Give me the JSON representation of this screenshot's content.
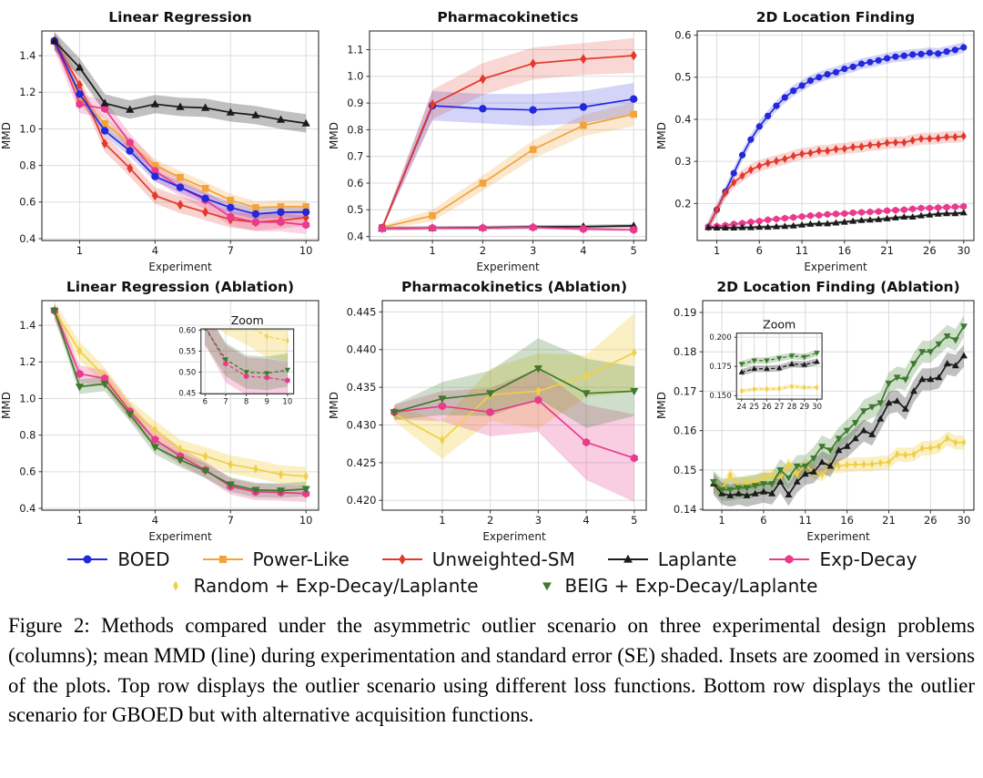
{
  "figure": {
    "caption": "Figure 2: Methods compared under the asymmetric outlier scenario on three experimental design problems (columns); mean MMD (line) during experimentation and standard error (SE) shaded. Insets are zoomed in versions of the plots. Top row displays the outlier scenario using different loss functions. Bottom row displays the outlier scenario for GBOED but with alternative acquisition functions."
  },
  "colors": {
    "boed_blue": "#2328DC",
    "power_like_orange": "#F2A33C",
    "unweighted_sm_red": "#E3382B",
    "laplante_black": "#1B1B1B",
    "exp_decay_pink": "#E93A8D",
    "random_yellow": "#F0CF45",
    "beig_green": "#3C7A2D"
  },
  "legend": {
    "rows": [
      [
        {
          "label": "BOED",
          "color": "#2328DC",
          "marker": "circle",
          "line": true
        },
        {
          "label": "Power-Like",
          "color": "#F2A33C",
          "marker": "square",
          "line": true
        },
        {
          "label": "Unweighted-SM",
          "color": "#E3382B",
          "marker": "diamond",
          "line": true
        },
        {
          "label": "Laplante",
          "color": "#1B1B1B",
          "marker": "triangle-up",
          "line": true
        },
        {
          "label": "Exp-Decay",
          "color": "#E93A8D",
          "marker": "hexagon",
          "line": true
        }
      ],
      [
        {
          "label": "Random + Exp-Decay/Laplante",
          "color": "#F0CF45",
          "marker": "thin-diamond",
          "line": false
        },
        {
          "label": "BEIG + Exp-Decay/Laplante",
          "color": "#3C7A2D",
          "marker": "triangle-down",
          "line": false
        }
      ]
    ]
  },
  "chart_data": [
    {
      "id": "linear-regression",
      "type": "line",
      "title": "Linear Regression",
      "xlabel": "Experiment",
      "ylabel": "MMD",
      "xlim": [
        -0.5,
        10.5
      ],
      "ylim": [
        0.39,
        1.535
      ],
      "xticks": [
        1,
        4,
        7,
        10
      ],
      "yticks": [
        0.4,
        0.6,
        0.8,
        1.0,
        1.2,
        1.4
      ],
      "ydec": 1,
      "ml": 46,
      "ms": 4.2,
      "series": [
        {
          "name": "Power-Like",
          "color": "#F2A33C",
          "marker": "square",
          "band_alpha": 0.25,
          "y": [
            1.48,
            1.17,
            1.03,
            0.92,
            0.8,
            0.735,
            0.675,
            0.61,
            0.57,
            0.575,
            0.575
          ],
          "se": 0.035
        },
        {
          "name": "Unweighted-SM",
          "color": "#E3382B",
          "marker": "diamond",
          "band_alpha": 0.22,
          "y": [
            1.48,
            1.24,
            0.92,
            0.785,
            0.635,
            0.585,
            0.545,
            0.505,
            0.49,
            0.5,
            0.515
          ],
          "se": 0.045
        },
        {
          "name": "Exp-Decay",
          "color": "#E93A8D",
          "marker": "hexagon",
          "band_alpha": 0.22,
          "y": [
            1.48,
            1.135,
            1.11,
            0.925,
            0.77,
            0.68,
            0.61,
            0.52,
            0.49,
            0.49,
            0.475
          ],
          "se": 0.05
        },
        {
          "name": "BOED",
          "color": "#2328DC",
          "marker": "circle",
          "band_alpha": 0.2,
          "y": [
            1.48,
            1.19,
            0.99,
            0.88,
            0.74,
            0.68,
            0.62,
            0.57,
            0.535,
            0.545,
            0.545
          ],
          "se": 0.03
        },
        {
          "name": "Laplante",
          "color": "#1B1B1B",
          "marker": "triangle-up",
          "band_alpha": 0.28,
          "y": [
            1.48,
            1.335,
            1.14,
            1.105,
            1.135,
            1.12,
            1.115,
            1.09,
            1.075,
            1.05,
            1.03
          ],
          "se": 0.05
        }
      ]
    },
    {
      "id": "pharmacokinetics",
      "type": "line",
      "title": "Pharmacokinetics",
      "xlabel": "Experiment",
      "ylabel": "MMD",
      "xlim": [
        -0.25,
        5.25
      ],
      "ylim": [
        0.385,
        1.17
      ],
      "xticks": [
        1,
        2,
        3,
        4,
        5
      ],
      "yticks": [
        0.4,
        0.5,
        0.6,
        0.7,
        0.8,
        0.9,
        1.0,
        1.1
      ],
      "ydec": 1,
      "ml": 46,
      "ms": 4.2,
      "series": [
        {
          "name": "Power-Like",
          "color": "#F2A33C",
          "marker": "square",
          "band_alpha": 0.25,
          "y": [
            0.434,
            0.478,
            0.6,
            0.726,
            0.816,
            0.858
          ],
          "se": [
            0.008,
            0.022,
            0.028,
            0.034,
            0.04,
            0.045
          ]
        },
        {
          "name": "BOED",
          "color": "#2328DC",
          "marker": "circle",
          "band_alpha": 0.2,
          "y": [
            0.432,
            0.89,
            0.879,
            0.874,
            0.885,
            0.915
          ],
          "se": [
            0.006,
            0.055,
            0.055,
            0.06,
            0.06,
            0.06
          ]
        },
        {
          "name": "Unweighted-SM",
          "color": "#E3382B",
          "marker": "diamond",
          "band_alpha": 0.2,
          "y": [
            0.431,
            0.895,
            0.99,
            1.048,
            1.065,
            1.078
          ],
          "se": [
            0.006,
            0.055,
            0.06,
            0.06,
            0.06,
            0.065
          ]
        },
        {
          "name": "Laplante",
          "color": "#1B1B1B",
          "marker": "triangle-up",
          "band_alpha": 0.28,
          "y": [
            0.43,
            0.432,
            0.433,
            0.436,
            0.437,
            0.44
          ],
          "se": 0.007
        },
        {
          "name": "Exp-Decay",
          "color": "#E93A8D",
          "marker": "hexagon",
          "band_alpha": 0.22,
          "y": [
            0.43,
            0.432,
            0.432,
            0.434,
            0.428,
            0.425
          ],
          "se": 0.006
        }
      ]
    },
    {
      "id": "2d-location-finding",
      "type": "line",
      "title": "2D Location Finding",
      "xlabel": "Experiment",
      "ylabel": "MMD",
      "xlim": [
        -1.3,
        31.2
      ],
      "ylim": [
        0.112,
        0.61
      ],
      "xticks": [
        1,
        6,
        11,
        16,
        21,
        26,
        30
      ],
      "yticks": [
        0.2,
        0.3,
        0.4,
        0.5,
        0.6
      ],
      "ydec": 1,
      "ml": 46,
      "ms": 3.6,
      "series": [
        {
          "name": "BOED",
          "color": "#2328DC",
          "marker": "circle",
          "band_alpha": 0.2,
          "y": [
            0.145,
            0.185,
            0.228,
            0.272,
            0.315,
            0.352,
            0.383,
            0.408,
            0.432,
            0.452,
            0.468,
            0.48,
            0.492,
            0.5,
            0.507,
            0.512,
            0.52,
            0.525,
            0.532,
            0.536,
            0.54,
            0.545,
            0.549,
            0.551,
            0.554,
            0.555,
            0.558,
            0.556,
            0.561,
            0.565,
            0.571
          ],
          "se": 0.013
        },
        {
          "name": "Unweighted-SM",
          "color": "#E3382B",
          "marker": "diamond",
          "band_alpha": 0.2,
          "y": [
            0.145,
            0.185,
            0.225,
            0.25,
            0.266,
            0.28,
            0.289,
            0.296,
            0.301,
            0.306,
            0.313,
            0.318,
            0.32,
            0.325,
            0.325,
            0.329,
            0.33,
            0.334,
            0.335,
            0.339,
            0.34,
            0.344,
            0.345,
            0.345,
            0.35,
            0.354,
            0.354,
            0.355,
            0.358,
            0.358,
            0.36
          ],
          "se": 0.014
        },
        {
          "name": "Exp-Decay",
          "color": "#E93A8D",
          "marker": "hexagon",
          "band_alpha": 0.25,
          "y": [
            0.144,
            0.146,
            0.148,
            0.151,
            0.153,
            0.156,
            0.158,
            0.161,
            0.163,
            0.165,
            0.167,
            0.169,
            0.171,
            0.172,
            0.174,
            0.175,
            0.176,
            0.178,
            0.179,
            0.18,
            0.181,
            0.183,
            0.184,
            0.185,
            0.187,
            0.189,
            0.189,
            0.19,
            0.191,
            0.192,
            0.193
          ],
          "se": 0.004
        },
        {
          "name": "Laplante",
          "color": "#1B1B1B",
          "marker": "triangle-up",
          "band_alpha": 0.3,
          "y": [
            0.143,
            0.142,
            0.142,
            0.142,
            0.143,
            0.143,
            0.144,
            0.144,
            0.145,
            0.146,
            0.147,
            0.149,
            0.151,
            0.152,
            0.152,
            0.154,
            0.156,
            0.158,
            0.16,
            0.161,
            0.162,
            0.164,
            0.166,
            0.168,
            0.168,
            0.171,
            0.173,
            0.175,
            0.176,
            0.176,
            0.178
          ],
          "se": 0.004
        }
      ]
    },
    {
      "id": "linear-regression-ablation",
      "type": "line",
      "title": "Linear Regression (Ablation)",
      "xlabel": "Experiment",
      "ylabel": "MMD",
      "xlim": [
        -0.5,
        10.5
      ],
      "ylim": [
        0.39,
        1.535
      ],
      "xticks": [
        1,
        4,
        7,
        10
      ],
      "yticks": [
        0.4,
        0.6,
        0.8,
        1.0,
        1.2,
        1.4
      ],
      "ydec": 1,
      "ml": 46,
      "ms": 4.2,
      "series": [
        {
          "name": "Random + Exp-Decay/Laplante",
          "color": "#F0CF45",
          "marker": "thin-diamond",
          "band_alpha": 0.32,
          "y": [
            1.48,
            1.26,
            1.12,
            0.94,
            0.83,
            0.725,
            0.685,
            0.64,
            0.615,
            0.585,
            0.575
          ],
          "se": 0.05
        },
        {
          "name": "Exp-Decay",
          "color": "#E93A8D",
          "marker": "hexagon",
          "band_alpha": 0.25,
          "y": [
            1.48,
            1.135,
            1.11,
            0.93,
            0.775,
            0.685,
            0.61,
            0.52,
            0.49,
            0.487,
            0.48
          ],
          "se": 0.045
        },
        {
          "name": "BEIG + Exp-Decay/Laplante",
          "color": "#3C7A2D",
          "marker": "triangle-down",
          "band_alpha": 0.25,
          "y": [
            1.48,
            1.065,
            1.08,
            0.915,
            0.735,
            0.665,
            0.605,
            0.53,
            0.5,
            0.497,
            0.505
          ],
          "se": 0.04
        }
      ],
      "inset": {
        "title": "Zoom",
        "pos": [
          0.575,
          0.135,
          0.335,
          0.31
        ],
        "x_from": 6,
        "xlim": [
          5.8,
          10.3
        ],
        "ylim": [
          0.448,
          0.603
        ],
        "xticks": [
          6,
          7,
          8,
          9,
          10
        ],
        "yticks": [
          0.45,
          0.5,
          0.55,
          0.6
        ],
        "ydec": 2,
        "dashed": true
      }
    },
    {
      "id": "pharmacokinetics-ablation",
      "type": "line",
      "title": "Pharmacokinetics (Ablation)",
      "xlabel": "Experiment",
      "ylabel": "MMD",
      "xlim": [
        -0.25,
        5.25
      ],
      "ylim": [
        0.4187,
        0.4465
      ],
      "xticks": [
        1,
        2,
        3,
        4,
        5
      ],
      "yticks": [
        0.42,
        0.425,
        0.43,
        0.435,
        0.44,
        0.445
      ],
      "ydec": 3,
      "ml": 60,
      "ms": 4.2,
      "series": [
        {
          "name": "Random + Exp-Decay/Laplante",
          "color": "#F0CF45",
          "marker": "thin-diamond",
          "band_alpha": 0.32,
          "y": [
            0.4315,
            0.428,
            0.434,
            0.4345,
            0.4365,
            0.4396
          ],
          "se": [
            0.001,
            0.0025,
            0.0035,
            0.005,
            0.0028,
            0.0052
          ]
        },
        {
          "name": "Exp-Decay",
          "color": "#E93A8D",
          "marker": "hexagon",
          "band_alpha": 0.25,
          "y": [
            0.4317,
            0.4325,
            0.4317,
            0.4333,
            0.4277,
            0.4256
          ],
          "se": [
            0.001,
            0.002,
            0.0032,
            0.0042,
            0.005,
            0.0058
          ]
        },
        {
          "name": "BEIG + Exp-Decay/Laplante",
          "color": "#3C7A2D",
          "marker": "triangle-down",
          "band_alpha": 0.25,
          "y": [
            0.4317,
            0.4335,
            0.4342,
            0.4375,
            0.4342,
            0.4345
          ],
          "se": [
            0.001,
            0.0022,
            0.003,
            0.004,
            0.0046,
            0.0033
          ]
        }
      ]
    },
    {
      "id": "2d-location-finding-ablation",
      "type": "line",
      "title": "2D Location Finding (Ablation)",
      "xlabel": "Experiment",
      "ylabel": "MMD",
      "xlim": [
        -1.3,
        31.2
      ],
      "ylim": [
        0.1398,
        0.193
      ],
      "xticks": [
        1,
        6,
        11,
        16,
        21,
        26,
        30
      ],
      "yticks": [
        0.14,
        0.15,
        0.16,
        0.17,
        0.18,
        0.19
      ],
      "ydec": 2,
      "ml": 52,
      "ms": 3.6,
      "series": [
        {
          "name": "Random + Exp-Decay/Laplante",
          "color": "#F0CF45",
          "marker": "thin-diamond",
          "band_alpha": 0.32,
          "y": [
            0.1465,
            0.145,
            0.1487,
            0.146,
            0.147,
            0.147,
            0.148,
            0.1485,
            0.148,
            0.1513,
            0.149,
            0.1512,
            0.1495,
            0.1489,
            0.151,
            0.151,
            0.1513,
            0.1514,
            0.1514,
            0.1515,
            0.1518,
            0.152,
            0.154,
            0.1538,
            0.154,
            0.1555,
            0.1556,
            0.156,
            0.158,
            0.157,
            0.157
          ],
          "se": 0.0018
        },
        {
          "name": "Laplante",
          "color": "#1B1B1B",
          "marker": "triangle-up",
          "band_alpha": 0.28,
          "y": [
            0.1465,
            0.144,
            0.1435,
            0.144,
            0.1435,
            0.144,
            0.1445,
            0.144,
            0.147,
            0.1437,
            0.147,
            0.149,
            0.1495,
            0.152,
            0.151,
            0.155,
            0.156,
            0.158,
            0.16,
            0.159,
            0.163,
            0.167,
            0.1675,
            0.1655,
            0.17,
            0.173,
            0.173,
            0.1735,
            0.177,
            0.1765,
            0.179
          ],
          "se": 0.0028
        },
        {
          "name": "BEIG + Exp-Decay/Laplante",
          "color": "#3C7A2D",
          "marker": "triangle-down",
          "band_alpha": 0.25,
          "y": [
            0.147,
            0.145,
            0.145,
            0.1455,
            0.1455,
            0.146,
            0.1465,
            0.1465,
            0.15,
            0.148,
            0.151,
            0.151,
            0.153,
            0.156,
            0.155,
            0.158,
            0.16,
            0.162,
            0.165,
            0.166,
            0.167,
            0.172,
            0.1735,
            0.173,
            0.177,
            0.18,
            0.18,
            0.182,
            0.184,
            0.183,
            0.1865
          ],
          "se": 0.0028
        }
      ],
      "inset": {
        "title": "Zoom",
        "pos": [
          0.125,
          0.155,
          0.315,
          0.315
        ],
        "x_from": 24,
        "xlim": [
          23.6,
          30.4
        ],
        "ylim": [
          0.147,
          0.2035
        ],
        "xticks": [
          24,
          25,
          26,
          27,
          28,
          29,
          30
        ],
        "yticks": [
          0.15,
          0.175,
          0.2
        ],
        "ydec": 3,
        "dashed": true
      }
    }
  ]
}
